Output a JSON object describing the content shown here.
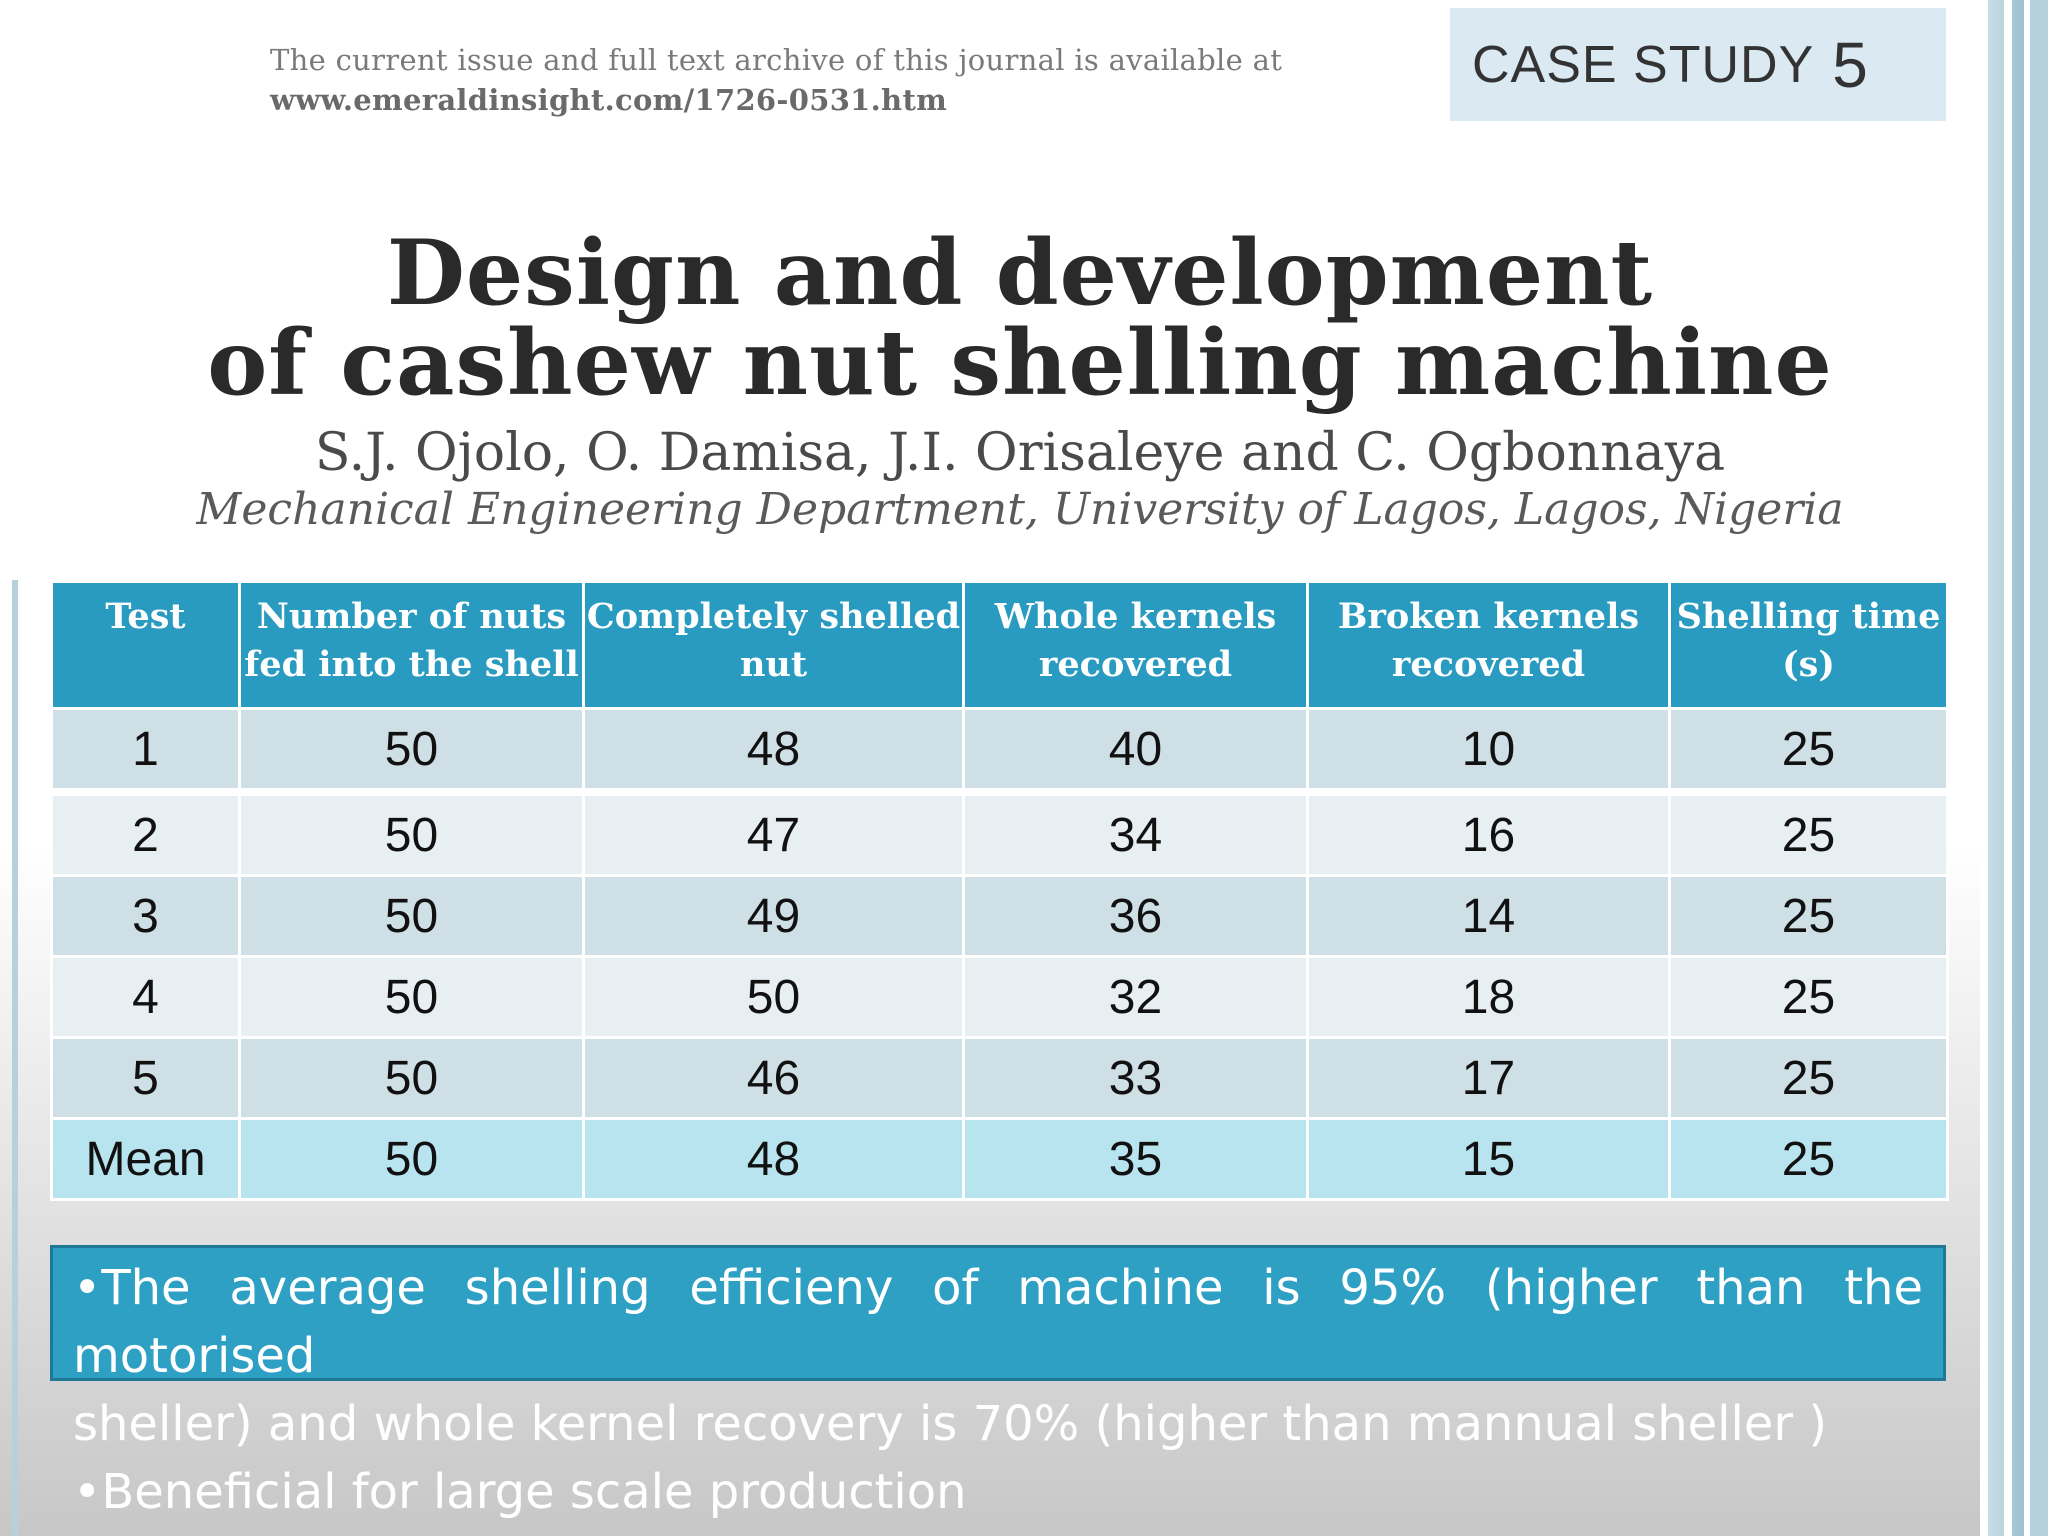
{
  "header": {
    "availability_line": "The current issue and full text archive of this journal is available at",
    "url": "www.emeraldinsight.com/1726-0531.htm"
  },
  "case_badge": {
    "label": "CASE STUDY",
    "number": "5"
  },
  "paper": {
    "title_line1": "Design and development",
    "title_line2": "of cashew nut shelling machine",
    "authors": "S.J. Ojolo, O. Damisa, J.I. Orisaleye and C. Ogbonnaya",
    "affiliation": "Mechanical Engineering Department, University of Lagos, Lagos, Nigeria"
  },
  "table": {
    "headers": [
      [
        "Test"
      ],
      [
        "Number of nuts",
        "fed into the shell"
      ],
      [
        "Completely shelled",
        "nut"
      ],
      [
        "Whole kernels",
        "recovered"
      ],
      [
        "Broken kernels",
        "recovered"
      ],
      [
        "Shelling time",
        "(s)"
      ]
    ],
    "rows": [
      [
        "1",
        "50",
        "48",
        "40",
        "10",
        "25"
      ],
      [
        "2",
        "50",
        "47",
        "34",
        "16",
        "25"
      ],
      [
        "3",
        "50",
        "49",
        "36",
        "14",
        "25"
      ],
      [
        "4",
        "50",
        "50",
        "32",
        "18",
        "25"
      ],
      [
        "5",
        "50",
        "46",
        "33",
        "17",
        "25"
      ],
      [
        "Mean",
        "50",
        "48",
        "35",
        "15",
        "25"
      ]
    ]
  },
  "summary": {
    "line1": "•The average shelling efficieny of machine is 95% (higher than the motorised",
    "line2": "sheller) and whole kernel recovery is  70% (higher than mannual sheller  )",
    "line3": "•Beneficial for large scale production"
  }
}
